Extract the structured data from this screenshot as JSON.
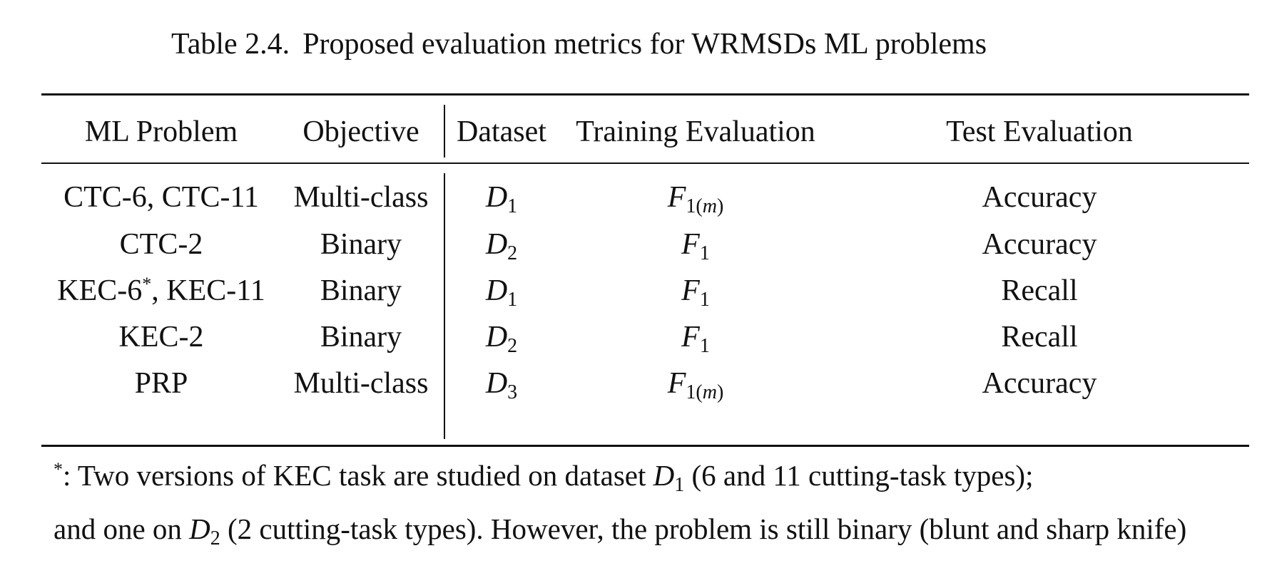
{
  "caption": {
    "label": "Table 2.4.",
    "title": "Proposed evaluation metrics for WRMSDs ML problems"
  },
  "table": {
    "headers": [
      "ML Problem",
      "Objective",
      "Dataset",
      "Training Evaluation",
      "Test Evaluation"
    ],
    "rows": [
      {
        "problem_a": "CTC-6, CTC-11",
        "problem_star": "",
        "problem_b": "",
        "objective": "Multi-class",
        "dataset_base": "D",
        "dataset_sub": "1",
        "train_base": "F",
        "train_sub_pre": "1(",
        "train_sub_var": "m",
        "train_sub_post": ")",
        "test": "Accuracy"
      },
      {
        "problem_a": "CTC-2",
        "problem_star": "",
        "problem_b": "",
        "objective": "Binary",
        "dataset_base": "D",
        "dataset_sub": "2",
        "train_base": "F",
        "train_sub_pre": "1",
        "train_sub_var": "",
        "train_sub_post": "",
        "test": "Accuracy"
      },
      {
        "problem_a": "KEC-6",
        "problem_star": "*",
        "problem_b": ", KEC-11",
        "objective": "Binary",
        "dataset_base": "D",
        "dataset_sub": "1",
        "train_base": "F",
        "train_sub_pre": "1",
        "train_sub_var": "",
        "train_sub_post": "",
        "test": "Recall"
      },
      {
        "problem_a": "KEC-2",
        "problem_star": "",
        "problem_b": "",
        "objective": "Binary",
        "dataset_base": "D",
        "dataset_sub": "2",
        "train_base": "F",
        "train_sub_pre": "1",
        "train_sub_var": "",
        "train_sub_post": "",
        "test": "Recall"
      },
      {
        "problem_a": "PRP",
        "problem_star": "",
        "problem_b": "",
        "objective": "Multi-class",
        "dataset_base": "D",
        "dataset_sub": "3",
        "train_base": "F",
        "train_sub_pre": "1(",
        "train_sub_var": "m",
        "train_sub_post": ")",
        "test": "Accuracy"
      }
    ]
  },
  "footnote": {
    "line1_star": "*",
    "line1_pre": ": Two versions of KEC task are studied on dataset ",
    "line1_var": "D",
    "line1_sub": "1",
    "line1_post": " (6 and 11 cutting-task types);",
    "line2_pre": "and one on ",
    "line2_var": "D",
    "line2_sub": "2",
    "line2_post": " (2 cutting-task types). However, the problem is still binary (blunt and sharp knife)"
  }
}
